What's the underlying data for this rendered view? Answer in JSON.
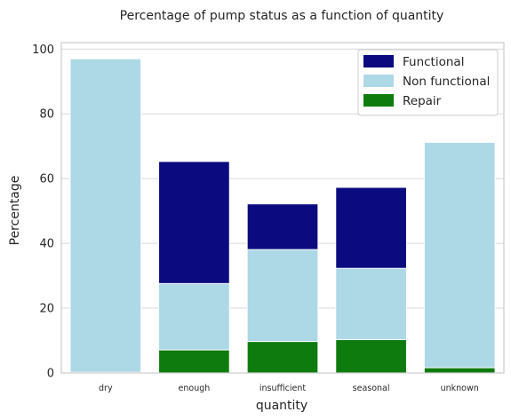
{
  "chart_data": {
    "type": "bar",
    "stacking": "overlaid",
    "title": "Percentage of pump status as a function of quantity",
    "xlabel": "quantity",
    "ylabel": "Percentage",
    "categories": [
      "dry",
      "enough",
      "insufficient",
      "seasonal",
      "unknown"
    ],
    "ylim": [
      0,
      102
    ],
    "yticks": [
      0,
      20,
      40,
      60,
      80,
      100
    ],
    "grid": "horizontal",
    "legend_position": "top-right",
    "series": [
      {
        "name": "Functional",
        "color": "#0b0b7f",
        "values": [
          0.5,
          65.3,
          52.2,
          57.3,
          1.5
        ]
      },
      {
        "name": "Non functional",
        "color": "#add8e6",
        "values": [
          97.0,
          27.6,
          38.1,
          32.3,
          71.2
        ]
      },
      {
        "name": "Repair",
        "color": "#0e7b0e",
        "values": [
          0.2,
          7.1,
          9.7,
          10.3,
          1.6
        ]
      }
    ]
  }
}
